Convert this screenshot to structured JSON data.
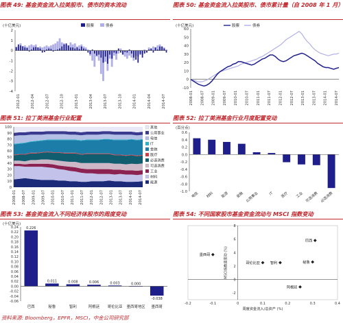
{
  "figures": [
    {
      "title": "图表 49: 基金资金流入拉美股市、债市的资本流动",
      "unit": "(十亿美元)"
    },
    {
      "title": "图表 50: 基金资金流入拉美股市、债市累计量（自 2008 年 1 月）",
      "unit": "(十亿美元)"
    },
    {
      "title": "图表 51: 拉丁美洲基金行业配置"
    },
    {
      "title": "图表 52: 拉丁美洲基金行业月度配置变动",
      "unit": "(百分点)"
    },
    {
      "title": "图表 53: 基金资金流入不同经济体股市的周度变动",
      "unit": "(十亿美元)"
    },
    {
      "title": "图表 54: 不同国家股市基金资金流动与 MSCI 指数变动"
    }
  ],
  "source": "资料来源: Bloomberg，EPFR，MSCI，中金公司研究部",
  "colors": {
    "navy": "#1f1f8c",
    "lavender": "#b0b0e6",
    "red": "#c1272d"
  },
  "chart_data": [
    {
      "type": "bar",
      "title": "图表 49: 基金资金流入拉美股市、债市的资本流动",
      "ylabel": "(十亿美元)",
      "ylim": [
        -4,
        2
      ],
      "yticks": [
        2,
        1,
        0,
        -1,
        -2,
        -3,
        -4
      ],
      "x_ticks": [
        "2012-01",
        "2012-04",
        "2012-07",
        "2012-10",
        "2013-01",
        "2013-04",
        "2013-07",
        "2013-10",
        "2014-01",
        "2014-04",
        "2014-07"
      ],
      "legend": [
        "股票",
        "债券"
      ],
      "series": [
        {
          "name": "股票",
          "color": "#1f1f8c",
          "values": [
            0.35,
            0.6,
            0.5,
            0.4,
            0.3,
            0.25,
            -0.1,
            0.1,
            0.3,
            0.35,
            0.3,
            0.2,
            -0.2,
            -0.15,
            0.1,
            0.2,
            0.15,
            -0.1,
            0.05,
            0.1,
            0.2,
            0.4,
            0.6,
            0.7,
            0.5,
            0.3,
            0.3,
            0.2,
            0.3,
            0.15,
            0.4,
            0.2,
            0.1,
            -0.2,
            -0.35,
            0.1,
            -0.3,
            -0.5,
            -0.4,
            -0.7,
            -1.2,
            -0.6,
            -1.3,
            -0.4,
            -0.8,
            -0.2,
            -0.3,
            0.2,
            -0.2,
            -0.4,
            -0.15,
            -0.2,
            0.1,
            -0.3,
            -0.7,
            -0.9,
            -1.2,
            -0.4,
            -0.7,
            -0.3,
            -0.2,
            0.1,
            0.2,
            -0.2,
            0.3,
            0.1,
            0.4,
            0.4,
            0.2,
            -0.2
          ]
        },
        {
          "name": "债券",
          "color": "#b0b0e6",
          "values": [
            0.3,
            0.4,
            0.7,
            0.45,
            0.5,
            0.35,
            0.5,
            0.6,
            0.5,
            0.6,
            0.3,
            0.4,
            0.3,
            0.4,
            0.5,
            0.4,
            0.5,
            0.6,
            0.7,
            0.9,
            1.2,
            0.8,
            0.7,
            0.6,
            0.5,
            0.8,
            0.6,
            0.7,
            0.4,
            0.5,
            0.6,
            0.4,
            0.3,
            0.1,
            -0.5,
            -1.0,
            -1.6,
            -0.6,
            -1.0,
            -2.3,
            -3.0,
            -1.1,
            -2.0,
            -0.8,
            -1.6,
            -0.5,
            -0.9,
            -0.3,
            0.2,
            -0.4,
            -0.6,
            -0.8,
            -0.5,
            -0.7,
            -1.0,
            -0.5,
            -0.6,
            -0.3,
            -0.4,
            0.1,
            -0.2,
            0.3,
            0.2,
            0.4,
            0.3,
            0.5,
            0.6,
            0.4,
            0.3,
            0.1
          ]
        }
      ]
    },
    {
      "type": "line",
      "title": "图表 50: 基金资金流入拉美股市、债市累计量（自 2008 年 1 月）",
      "ylabel": "(十亿美元)",
      "ylim": [
        -10,
        60
      ],
      "yticks": [
        60,
        50,
        40,
        30,
        20,
        10,
        0,
        -10
      ],
      "x_ticks": [
        "2008-01",
        "2008-07",
        "2009-01",
        "2009-07",
        "2010-01",
        "2010-07",
        "2011-01",
        "2011-07",
        "2012-01",
        "2012-07",
        "2013-01",
        "2013-07",
        "2014-01",
        "2014-07"
      ],
      "legend": [
        "股票",
        "债券"
      ],
      "series": [
        {
          "name": "股票",
          "color": "#1f1f8c",
          "values": [
            0,
            -2,
            -4,
            -6,
            -7,
            -8,
            -7,
            -5,
            -2,
            2,
            6,
            9,
            11,
            13,
            15,
            16,
            18,
            19,
            21,
            21,
            20,
            19,
            18,
            17,
            18,
            20,
            22,
            24,
            25,
            27,
            29,
            29,
            27,
            24,
            22,
            21,
            22,
            24,
            26,
            28,
            29,
            30,
            31,
            30,
            28,
            26,
            24,
            22,
            19,
            17,
            15,
            14,
            14,
            13,
            12,
            13,
            14
          ]
        },
        {
          "name": "债券",
          "color": "#b0b0e6",
          "values": [
            0,
            -1,
            -2,
            -3,
            -3,
            -2,
            -1,
            1,
            3,
            5,
            7,
            9,
            10,
            11,
            12,
            13,
            14,
            15,
            16,
            18,
            19,
            20,
            21,
            22,
            23,
            24,
            26,
            27,
            29,
            31,
            33,
            35,
            37,
            39,
            41,
            44,
            47,
            49,
            51,
            53,
            55,
            57,
            54,
            49,
            45,
            42,
            38,
            35,
            33,
            31,
            30,
            29,
            28,
            29,
            30,
            30,
            31
          ]
        }
      ]
    },
    {
      "type": "area",
      "title": "图表 51: 拉丁美洲基金行业配置",
      "ylim": [
        0,
        100
      ],
      "yticks": [
        100,
        90,
        80,
        70,
        60,
        50,
        40,
        30,
        20,
        10,
        0
      ],
      "x_ticks": [
        "2008-01",
        "2008-07",
        "2009-01",
        "2009-07",
        "2010-01",
        "2010-07",
        "2011-01",
        "2011-07",
        "2012-01",
        "2012-07",
        "2013-01",
        "2013-07",
        "2014-01",
        "2014-07"
      ],
      "legend": [
        "其他",
        "公用事业",
        "电信",
        "IT",
        "金融",
        "医疗",
        "必选消费",
        "可选消费",
        "工业",
        "材料",
        "能源"
      ],
      "series": [
        {
          "name": "能源",
          "color": "#1b2b7a",
          "values": [
            13,
            14,
            15,
            14,
            13,
            12,
            12,
            12,
            11,
            11,
            10,
            10,
            9,
            9,
            10,
            10,
            10,
            11,
            10,
            10,
            9,
            9,
            9,
            10
          ]
        },
        {
          "name": "材料",
          "color": "#c2c2ea",
          "values": [
            22,
            21,
            19,
            20,
            21,
            22,
            21,
            20,
            19,
            18,
            17,
            16,
            15,
            14,
            13,
            12,
            12,
            11,
            11,
            12,
            12,
            12,
            11,
            11
          ]
        },
        {
          "name": "工业",
          "color": "#8b2252",
          "values": [
            4,
            4,
            4,
            5,
            5,
            5,
            6,
            6,
            6,
            6,
            7,
            7,
            7,
            7,
            7,
            8,
            8,
            8,
            8,
            7,
            7,
            7,
            7,
            7
          ]
        },
        {
          "name": "可选消费",
          "color": "#cdb8c7",
          "values": [
            5,
            5,
            5,
            6,
            6,
            7,
            7,
            7,
            8,
            8,
            8,
            9,
            9,
            10,
            10,
            10,
            10,
            10,
            10,
            10,
            10,
            11,
            11,
            11
          ]
        },
        {
          "name": "必选消费",
          "color": "#0f5d6e",
          "values": [
            9,
            10,
            11,
            11,
            11,
            11,
            12,
            12,
            13,
            13,
            14,
            14,
            14,
            15,
            15,
            15,
            15,
            15,
            14,
            14,
            14,
            14,
            13,
            13
          ]
        },
        {
          "name": "医疗",
          "color": "#d43a45",
          "values": [
            1,
            1,
            1,
            1,
            1,
            1,
            1,
            1,
            1,
            1,
            1,
            1,
            1,
            1,
            1,
            1,
            1,
            1,
            1,
            1,
            1,
            1,
            1,
            1
          ]
        },
        {
          "name": "金融",
          "color": "#1c7ea8",
          "values": [
            17,
            17,
            18,
            18,
            19,
            19,
            19,
            20,
            20,
            21,
            21,
            21,
            22,
            22,
            22,
            22,
            23,
            23,
            24,
            24,
            25,
            25,
            25,
            25
          ]
        },
        {
          "name": "IT",
          "color": "#2ab3c6",
          "values": [
            1,
            1,
            1,
            1,
            1,
            1,
            1,
            1,
            1,
            1,
            1,
            1,
            1,
            1,
            1,
            1,
            1,
            1,
            1,
            1,
            1,
            1,
            1,
            1
          ]
        },
        {
          "name": "电信",
          "color": "#b4bfe6",
          "values": [
            13,
            13,
            12,
            11,
            10,
            9,
            9,
            9,
            9,
            9,
            8,
            8,
            8,
            8,
            8,
            8,
            8,
            8,
            8,
            8,
            8,
            7,
            7,
            7
          ]
        },
        {
          "name": "公用事业",
          "color": "#3a3a8f",
          "values": [
            5,
            5,
            5,
            5,
            5,
            5,
            5,
            5,
            5,
            5,
            5,
            5,
            5,
            5,
            5,
            5,
            5,
            5,
            5,
            5,
            5,
            5,
            5,
            5
          ]
        },
        {
          "name": "其他",
          "color": "#e8e8f6",
          "values": [
            10,
            9,
            9,
            8,
            8,
            8,
            7,
            7,
            7,
            7,
            8,
            8,
            9,
            8,
            8,
            8,
            7,
            7,
            8,
            8,
            8,
            8,
            9,
            8
          ]
        }
      ]
    },
    {
      "type": "bar",
      "title": "图表 52: 拉丁美洲基金行业月度配置变动",
      "ylabel": "(百分点)",
      "ylim": [
        -1.0,
        0.6
      ],
      "yticks": [
        0.6,
        0.4,
        0.2,
        0.0,
        -0.2,
        -0.4,
        -0.6,
        -0.8,
        -1.0
      ],
      "categories": [
        "电信",
        "材料",
        "能源",
        "金融",
        "公用事业",
        "IT",
        "医疗",
        "工业",
        "可选消费",
        "必选消费"
      ],
      "values": [
        0.44,
        0.4,
        0.34,
        0.29,
        0.06,
        0.04,
        -0.21,
        -0.27,
        -0.29,
        -0.91
      ],
      "color": "#1f1f8c"
    },
    {
      "type": "bar",
      "title": "图表 53: 基金资金流入不同经济体股市的周度变动",
      "ylabel": "(十亿美元)",
      "ylim": [
        -0.06,
        0.24
      ],
      "yticks": [
        0.24,
        0.22,
        0.2,
        0.18,
        0.16,
        0.14,
        0.12,
        0.1,
        0.08,
        0.06,
        0.04,
        0.02,
        0.0,
        -0.02,
        -0.04,
        -0.06
      ],
      "categories": [
        "巴西",
        "秘鲁",
        "智利",
        "阿根廷",
        "哥伦比亚",
        "墨西哥地区",
        "墨西哥"
      ],
      "values": [
        0.226,
        0.011,
        0.008,
        0.006,
        0.003,
        0.0,
        -0.038
      ],
      "value_labels": [
        "0.226",
        "0.011",
        "0.008",
        "0.006",
        "0.003",
        "0.000",
        "-0.038"
      ],
      "color": "#1f1f8c"
    },
    {
      "type": "scatter",
      "title": "图表 54: 不同国家股市基金资金流动与 MSCI 指数变动",
      "xlabel": "周度资金流入/总资产 (%)",
      "ylabel": "MSCI指数周变动 (%)",
      "xlim": [
        -0.2,
        0.4
      ],
      "ylim": [
        -3,
        8
      ],
      "xticks": [
        -0.2,
        -0.1,
        0,
        0.1,
        0.2,
        0.3,
        0.4
      ],
      "yticks": [
        8,
        6,
        4,
        2,
        0,
        -2
      ],
      "points": [
        {
          "label": "巴西",
          "x": 0.31,
          "y": 5.8
        },
        {
          "label": "墨西哥",
          "x": -0.1,
          "y": 3.7
        },
        {
          "label": "哥伦比亚",
          "x": 0.1,
          "y": 2.5
        },
        {
          "label": "智利",
          "x": 0.17,
          "y": 2.5
        },
        {
          "label": "秘鲁",
          "x": 0.3,
          "y": 2.6
        },
        {
          "label": "阿根廷",
          "x": 0.25,
          "y": -1.1
        }
      ],
      "color": "#1f1f1f"
    }
  ]
}
